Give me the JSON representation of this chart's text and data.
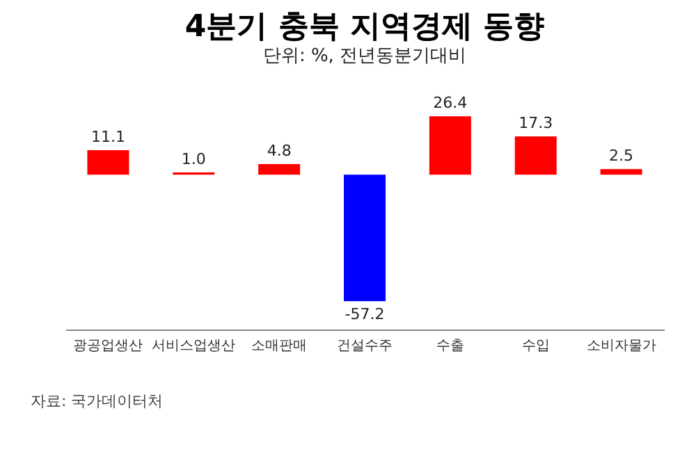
{
  "chart_data": {
    "type": "bar",
    "title": "4분기 충북 지역경제 동향",
    "subtitle": "단위: %, 전년동분기대비",
    "categories": [
      "광공업생산",
      "서비스업생산",
      "소매판매",
      "건설수주",
      "수출",
      "수입",
      "소비자물가"
    ],
    "values": [
      11.1,
      1.0,
      4.8,
      -57.2,
      26.4,
      17.3,
      2.5
    ],
    "colors": [
      "#ff0000",
      "#ff0000",
      "#ff0000",
      "#0000ff",
      "#ff0000",
      "#ff0000",
      "#ff0000"
    ],
    "value_labels": [
      "11.1",
      "1.0",
      "4.8",
      "-57.2",
      "26.4",
      "17.3",
      "2.5"
    ],
    "annotations": [
      "자료: 국가데이터처"
    ],
    "grid": false
  }
}
